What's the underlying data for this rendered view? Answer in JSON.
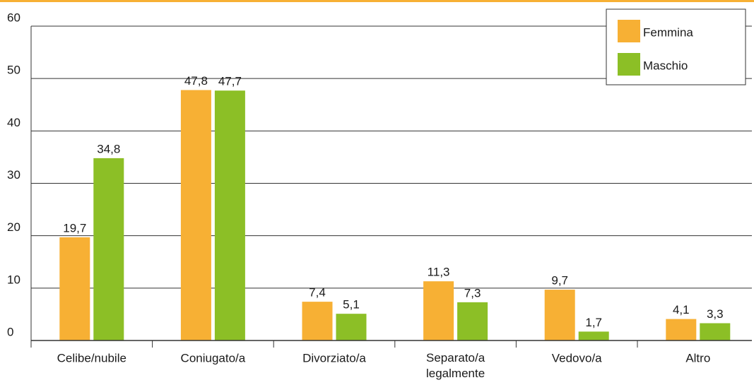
{
  "chart_data": {
    "type": "bar",
    "categories": [
      "Celibe/nubile",
      "Coniugato/a",
      "Divorziato/a",
      "Separato/a legalmente",
      "Vedovo/a",
      "Altro"
    ],
    "series": [
      {
        "name": "Femmina",
        "color": "#f7b034",
        "values": [
          19.7,
          47.8,
          7.4,
          11.3,
          9.7,
          4.1
        ],
        "value_labels": [
          "19,7",
          "47,8",
          "7,4",
          "11,3",
          "9,7",
          "4,1"
        ]
      },
      {
        "name": "Maschio",
        "color": "#8cbf26",
        "values": [
          34.8,
          47.7,
          5.1,
          7.3,
          1.7,
          3.3
        ],
        "value_labels": [
          "34,8",
          "47,7",
          "5,1",
          "7,3",
          "1,7",
          "3,3"
        ]
      }
    ],
    "ylim": [
      0,
      60
    ],
    "yticks": [
      0,
      10,
      20,
      30,
      40,
      50,
      60
    ],
    "grid": true,
    "legend": "top-right"
  }
}
